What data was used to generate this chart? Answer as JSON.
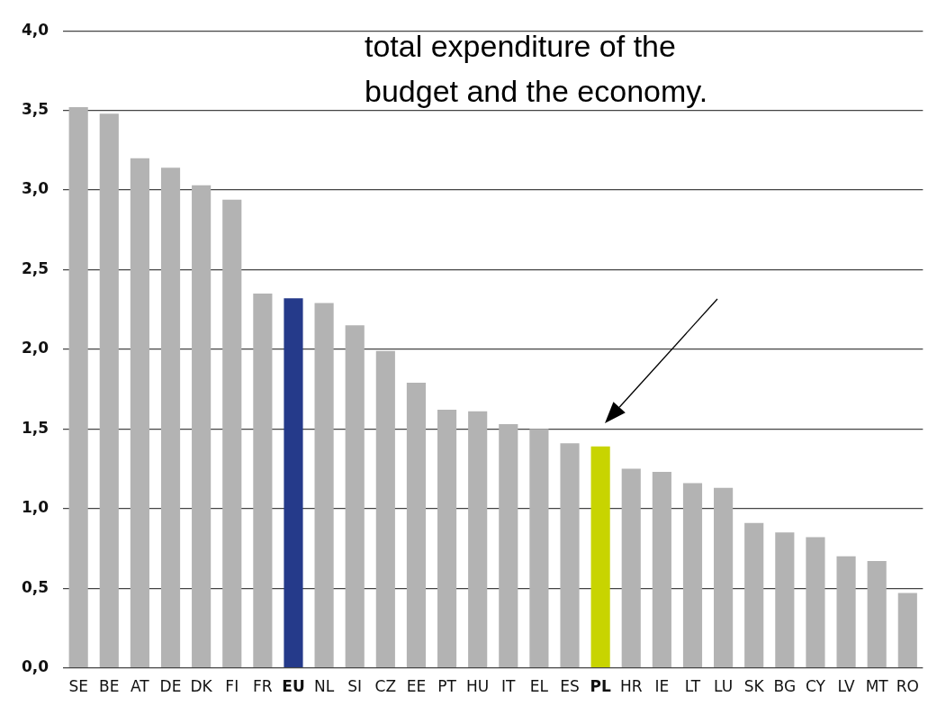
{
  "chart_data": {
    "type": "bar",
    "categories": [
      "SE",
      "BE",
      "AT",
      "DE",
      "DK",
      "FI",
      "FR",
      "EU",
      "NL",
      "SI",
      "CZ",
      "EE",
      "PT",
      "HU",
      "IT",
      "EL",
      "ES",
      "PL",
      "HR",
      "IE",
      "LT",
      "LU",
      "SK",
      "BG",
      "CY",
      "LV",
      "MT",
      "RO"
    ],
    "values": [
      3.52,
      3.48,
      3.2,
      3.14,
      3.03,
      2.94,
      2.35,
      2.32,
      2.29,
      2.15,
      1.99,
      1.79,
      1.62,
      1.61,
      1.53,
      1.5,
      1.41,
      1.39,
      1.25,
      1.23,
      1.16,
      1.13,
      0.91,
      0.85,
      0.82,
      0.7,
      0.67,
      0.47
    ],
    "colors": [
      "#b3b3b3",
      "#b3b3b3",
      "#b3b3b3",
      "#b3b3b3",
      "#b3b3b3",
      "#b3b3b3",
      "#b3b3b3",
      "#253a8a",
      "#b3b3b3",
      "#b3b3b3",
      "#b3b3b3",
      "#b3b3b3",
      "#b3b3b3",
      "#b3b3b3",
      "#b3b3b3",
      "#b3b3b3",
      "#b3b3b3",
      "#c8d400",
      "#b3b3b3",
      "#b3b3b3",
      "#b3b3b3",
      "#b3b3b3",
      "#b3b3b3",
      "#b3b3b3",
      "#b3b3b3",
      "#b3b3b3",
      "#b3b3b3",
      "#b3b3b3"
    ],
    "ylim": [
      0,
      4
    ],
    "yticks": [
      {
        "value": 0,
        "label": "0,0"
      },
      {
        "value": 0.5,
        "label": "0,5"
      },
      {
        "value": 1,
        "label": "1,0"
      },
      {
        "value": 1.5,
        "label": "1,5"
      },
      {
        "value": 2,
        "label": "2,0"
      },
      {
        "value": 2.5,
        "label": "2,5"
      },
      {
        "value": 3,
        "label": "3,0"
      },
      {
        "value": 3.5,
        "label": "3,5"
      },
      {
        "value": 4,
        "label": "4,0"
      }
    ],
    "grid": "y",
    "legend": false,
    "annotations": [
      "total expenditure of the budget and the economy."
    ]
  }
}
